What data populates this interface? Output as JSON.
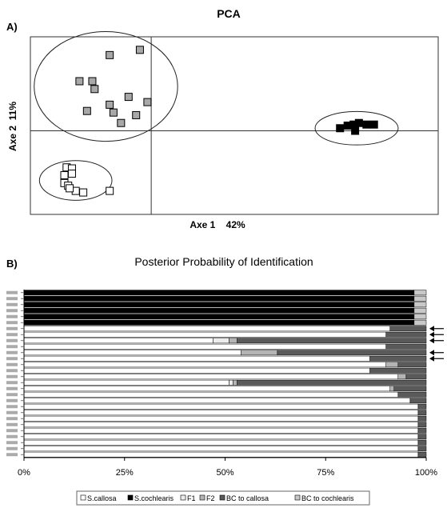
{
  "chart_data": [
    {
      "type": "scatter",
      "panel_label": "A)",
      "title": "PCA",
      "xlabel": "Axe 1    42%",
      "ylabel": "Axe 2  11%",
      "xlim": [
        -1.6,
        3.8
      ],
      "ylim": [
        -1.6,
        1.8
      ],
      "grid": false,
      "groups": [
        {
          "marker": "gray-square",
          "color": "#a8a8a8",
          "x": [
            -0.55,
            -0.15,
            -0.95,
            -0.78,
            -0.3,
            -0.75,
            -0.55,
            -0.85,
            -0.5,
            -0.2,
            -0.05,
            -0.4
          ],
          "y": [
            1.45,
            1.55,
            0.95,
            0.95,
            0.65,
            0.8,
            0.5,
            0.38,
            0.35,
            0.3,
            0.55,
            0.15
          ]
        },
        {
          "marker": "black-square",
          "color": "#000000",
          "x": [
            2.5,
            2.6,
            2.68,
            2.7,
            2.75,
            2.85,
            2.95
          ],
          "y": [
            0.05,
            0.1,
            0.12,
            0.0,
            0.15,
            0.12,
            0.12
          ]
        },
        {
          "marker": "white-square",
          "color": "#ffffff",
          "x": [
            -1.12,
            -1.05,
            -1.15,
            -1.05,
            -1.15,
            -1.1,
            -1.0,
            -0.9,
            -0.55,
            -1.08
          ],
          "y": [
            -0.7,
            -0.72,
            -0.85,
            -0.82,
            -1.0,
            -1.05,
            -1.15,
            -1.18,
            -1.15,
            -1.1
          ]
        }
      ],
      "ellipses": [
        {
          "cx": -0.6,
          "cy": 0.85,
          "rx": 0.95,
          "ry": 1.05
        },
        {
          "cx": 2.72,
          "cy": 0.05,
          "rx": 0.55,
          "ry": 0.32
        },
        {
          "cx": -1.0,
          "cy": -0.95,
          "rx": 0.48,
          "ry": 0.38
        }
      ]
    },
    {
      "type": "bar",
      "orientation": "horizontal",
      "stacked": true,
      "panel_label": "B)",
      "title": "Posterior Probability of Identification",
      "xticks": [
        "0%",
        "25%",
        "50%",
        "75%",
        "100%"
      ],
      "series": [
        {
          "name": "S.callosa",
          "color": "#ffffff"
        },
        {
          "name": "S.cochlearis",
          "color": "#000000"
        },
        {
          "name": "F1",
          "color": "#ececec"
        },
        {
          "name": "F2",
          "color": "#b4b4b4"
        },
        {
          "name": "BC to callosa",
          "color": "#5a5a5a"
        },
        {
          "name": "BC to cochlearis",
          "color": "#c8c8c8"
        }
      ],
      "rows": [
        [
          0,
          97,
          0,
          0,
          0,
          3
        ],
        [
          0,
          97,
          0,
          0,
          0,
          3
        ],
        [
          0,
          97,
          0,
          0,
          0,
          3
        ],
        [
          0,
          97,
          0,
          0,
          0,
          3
        ],
        [
          0,
          97,
          0,
          0,
          0,
          3
        ],
        [
          0,
          97,
          0,
          0,
          0,
          3
        ],
        [
          91,
          0,
          0,
          0,
          9,
          0
        ],
        [
          90,
          0,
          0,
          0,
          10,
          0
        ],
        [
          47,
          0,
          4,
          2,
          47,
          0
        ],
        [
          90,
          0,
          0,
          0,
          10,
          0
        ],
        [
          54,
          0,
          0,
          9,
          37,
          0
        ],
        [
          86,
          0,
          0,
          0,
          14,
          0
        ],
        [
          90,
          0,
          0,
          3,
          7,
          0
        ],
        [
          86,
          0,
          0,
          0,
          14,
          0
        ],
        [
          93,
          0,
          0,
          2,
          5,
          0
        ],
        [
          51,
          0,
          1,
          1,
          47,
          0
        ],
        [
          91,
          0,
          0,
          1,
          8,
          0
        ],
        [
          93,
          0,
          0,
          0,
          7,
          0
        ],
        [
          96,
          0,
          0,
          0,
          4,
          0
        ],
        [
          98,
          0,
          0,
          0,
          2,
          0
        ],
        [
          98,
          0,
          0,
          0,
          2,
          0
        ],
        [
          98,
          0,
          0,
          0,
          2,
          0
        ],
        [
          98,
          0,
          0,
          0,
          2,
          0
        ],
        [
          98,
          0,
          0,
          0,
          2,
          0
        ],
        [
          98,
          0,
          0,
          0,
          2,
          0
        ],
        [
          98,
          0,
          0,
          0,
          2,
          0
        ],
        [
          98,
          0,
          0,
          0,
          2,
          0
        ],
        [
          98,
          0,
          0,
          0,
          2,
          0
        ]
      ],
      "arrow_rows": [
        6,
        7,
        8,
        10,
        11
      ]
    }
  ]
}
